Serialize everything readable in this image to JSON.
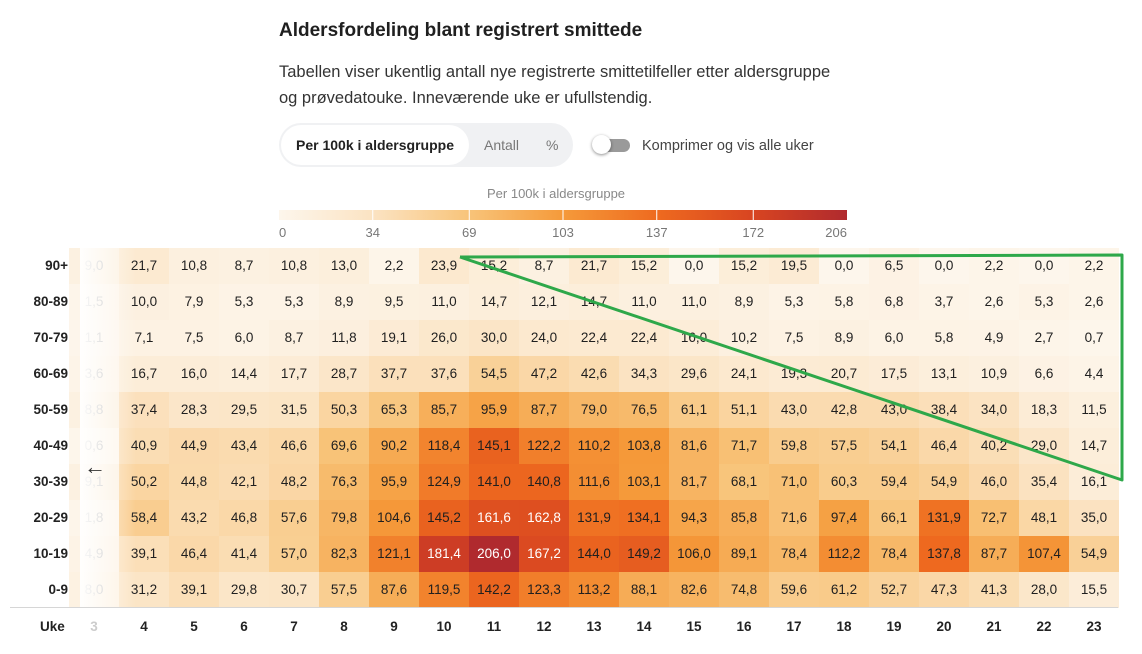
{
  "title": "Aldersfordeling blant registrert smittede",
  "description": "Tabellen viser ukentlig antall nye registrerte smittetilfeller etter aldersgruppe og prøvedatouke. Inneværende uke er ufullstendig.",
  "view_options": [
    "Per 100k i aldersgruppe",
    "Antall",
    "%"
  ],
  "selected_view": "Per 100k i aldersgruppe",
  "toggle_label": "Komprimer og vis alle uker",
  "toggle_on": false,
  "colors": {
    "scale": [
      "#fdf6ec",
      "#fbe3c2",
      "#f8c47a",
      "#f59a3a",
      "#ee6a1f",
      "#d84521",
      "#b02a2e"
    ],
    "annotation": "#2ea84a"
  },
  "chart_data": {
    "type": "heatmap",
    "legend_title": "Per 100k i aldersgruppe",
    "legend_ticks": [
      0,
      34,
      69,
      103,
      137,
      172,
      206
    ],
    "x_title": "Uke",
    "weeks": [
      "3",
      "4",
      "5",
      "6",
      "7",
      "8",
      "9",
      "10",
      "11",
      "12",
      "13",
      "14",
      "15",
      "16",
      "17",
      "18",
      "19",
      "20",
      "21",
      "22",
      "23"
    ],
    "rows": [
      {
        "label": "90+",
        "values": [
          "9,0",
          "21,7",
          "10,8",
          "8,7",
          "10,8",
          "13,0",
          "2,2",
          "23,9",
          "15,2",
          "8,7",
          "21,7",
          "15,2",
          "0,0",
          "15,2",
          "19,5",
          "0,0",
          "6,5",
          "0,0",
          "2,2",
          "0,0",
          "2,2"
        ]
      },
      {
        "label": "80-89",
        "values": [
          "1,5",
          "10,0",
          "7,9",
          "5,3",
          "5,3",
          "8,9",
          "9,5",
          "11,0",
          "14,7",
          "12,1",
          "14,7",
          "11,0",
          "11,0",
          "8,9",
          "5,3",
          "5,8",
          "6,8",
          "3,7",
          "2,6",
          "5,3",
          "2,6"
        ]
      },
      {
        "label": "70-79",
        "values": [
          "1,1",
          "7,1",
          "7,5",
          "6,0",
          "8,7",
          "11,8",
          "19,1",
          "26,0",
          "30,0",
          "24,0",
          "22,4",
          "22,4",
          "16,0",
          "10,2",
          "7,5",
          "8,9",
          "6,0",
          "5,8",
          "4,9",
          "2,7",
          "0,7"
        ]
      },
      {
        "label": "60-69",
        "values": [
          "3,6",
          "16,7",
          "16,0",
          "14,4",
          "17,7",
          "28,7",
          "37,7",
          "37,6",
          "54,5",
          "47,2",
          "42,6",
          "34,3",
          "29,6",
          "24,1",
          "19,3",
          "20,7",
          "17,5",
          "13,1",
          "10,9",
          "6,6",
          "4,4"
        ]
      },
      {
        "label": "50-59",
        "values": [
          "8,8",
          "37,4",
          "28,3",
          "29,5",
          "31,5",
          "50,3",
          "65,3",
          "85,7",
          "95,9",
          "87,7",
          "79,0",
          "76,5",
          "61,1",
          "51,1",
          "43,0",
          "42,8",
          "43,0",
          "38,4",
          "34,0",
          "18,3",
          "11,5"
        ]
      },
      {
        "label": "40-49",
        "values": [
          "0,6",
          "40,9",
          "44,9",
          "43,4",
          "46,6",
          "69,6",
          "90,2",
          "118,4",
          "145,1",
          "122,2",
          "110,2",
          "103,8",
          "81,6",
          "71,7",
          "59,8",
          "57,5",
          "54,1",
          "46,4",
          "40,2",
          "29,0",
          "14,7"
        ]
      },
      {
        "label": "30-39",
        "values": [
          "9,1",
          "50,2",
          "44,8",
          "42,1",
          "48,2",
          "76,3",
          "95,9",
          "124,9",
          "141,0",
          "140,8",
          "111,6",
          "103,1",
          "81,7",
          "68,1",
          "71,0",
          "60,3",
          "59,4",
          "54,9",
          "46,0",
          "35,4",
          "16,1"
        ]
      },
      {
        "label": "20-29",
        "values": [
          "1,8",
          "58,4",
          "43,2",
          "46,8",
          "57,6",
          "79,8",
          "104,6",
          "145,2",
          "161,6",
          "162,8",
          "131,9",
          "134,1",
          "94,3",
          "85,8",
          "71,6",
          "97,4",
          "66,1",
          "131,9",
          "72,7",
          "48,1",
          "35,0"
        ]
      },
      {
        "label": "10-19",
        "values": [
          "4,9",
          "39,1",
          "46,4",
          "41,4",
          "57,0",
          "82,3",
          "121,1",
          "181,4",
          "206,0",
          "167,2",
          "144,0",
          "149,2",
          "106,0",
          "89,1",
          "78,4",
          "112,2",
          "78,4",
          "137,8",
          "87,7",
          "107,4",
          "54,9"
        ]
      },
      {
        "label": "0-9",
        "values": [
          "8,0",
          "31,2",
          "39,1",
          "29,8",
          "30,7",
          "57,5",
          "87,6",
          "119,5",
          "142,2",
          "123,3",
          "113,2",
          "88,1",
          "82,6",
          "74,8",
          "59,6",
          "61,2",
          "52,7",
          "47,3",
          "41,3",
          "28,0",
          "15,5"
        ]
      }
    ]
  }
}
